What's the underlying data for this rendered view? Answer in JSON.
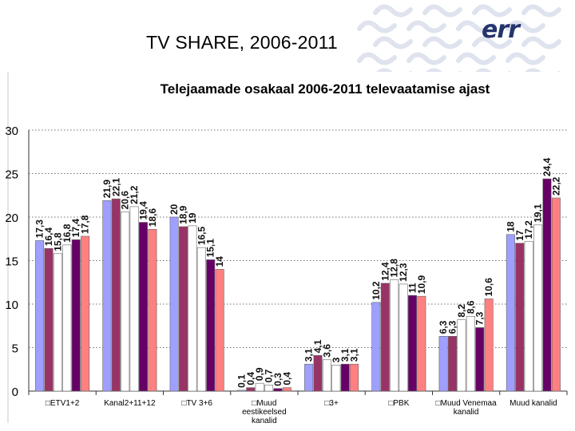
{
  "slide": {
    "title": "TV SHARE, 2006-2011",
    "logo_text": "err",
    "colors": {
      "logo": "#24346d",
      "watermark": "#dfe3ee"
    }
  },
  "chart_data": {
    "type": "bar",
    "title": "Telejaamade osakaal 2006-2011 televaatamise ajast",
    "categories": [
      "ETV1+2",
      "Kanal2+11+12",
      "TV 3+6",
      "Muud eestikeelsed kanalid",
      "3+",
      "PBK",
      "Muud Venemaa kanalid",
      "Muud kanalid"
    ],
    "category_labels": [
      [
        "□ETV1+2"
      ],
      [
        "Kanal2+11+12"
      ],
      [
        "□TV 3+6"
      ],
      [
        "□Muud",
        "eestikeelsed",
        "kanalid"
      ],
      [
        "□3+"
      ],
      [
        "□PBK"
      ],
      [
        "□Muud Venemaa",
        "kanalid"
      ],
      [
        "Muud kanalid"
      ]
    ],
    "series": [
      {
        "values": [
          17.3,
          21.9,
          20,
          0.1,
          3.1,
          10.2,
          6.3,
          18
        ],
        "labels": [
          "17,3",
          "21,9",
          "20",
          "0,1",
          "3,1",
          "10,2",
          "6,3",
          "18"
        ],
        "color": "#9f9fff"
      },
      {
        "values": [
          16.4,
          22.1,
          18.9,
          0.4,
          4.1,
          12.4,
          6.3,
          17
        ],
        "labels": [
          "16,4",
          "22,1",
          "18,9",
          "0,4",
          "4,1",
          "12,4",
          "6,3",
          "17"
        ],
        "color": "#993366"
      },
      {
        "values": [
          15.8,
          20.6,
          19,
          0.9,
          3.6,
          12.8,
          8.2,
          17.2
        ],
        "labels": [
          "15,8",
          "20,6",
          "19",
          "0,9",
          "3,6",
          "12,8",
          "8,2",
          "17,2"
        ],
        "color": "#ffffff"
      },
      {
        "values": [
          16.8,
          21.2,
          16.5,
          0.7,
          3,
          12.3,
          8.6,
          19.1
        ],
        "labels": [
          "16,8",
          "21,2",
          "16,5",
          "0,7",
          "3",
          "12,3",
          "8,6",
          "19,1"
        ],
        "color": "#ffffff"
      },
      {
        "values": [
          17.4,
          19.4,
          15.1,
          0.3,
          3.1,
          11,
          7.3,
          24.4
        ],
        "labels": [
          "17,4",
          "19,4",
          "15,1",
          "0,3",
          "3,1",
          "11",
          "7,3",
          "24,4"
        ],
        "color": "#660066"
      },
      {
        "values": [
          17.8,
          18.6,
          14,
          0.4,
          3.1,
          10.9,
          10.6,
          22.2
        ],
        "labels": [
          "17,8",
          "18,6",
          "14",
          "0,4",
          "3,1",
          "10,9",
          "10,6",
          "22,2"
        ],
        "color": "#ff8080"
      }
    ],
    "y_ticks": [
      "0",
      "5",
      "10",
      "15",
      "20",
      "25",
      "30"
    ],
    "ylim": [
      0,
      30
    ],
    "grid": "horizontal-dotted",
    "legend": "none"
  }
}
